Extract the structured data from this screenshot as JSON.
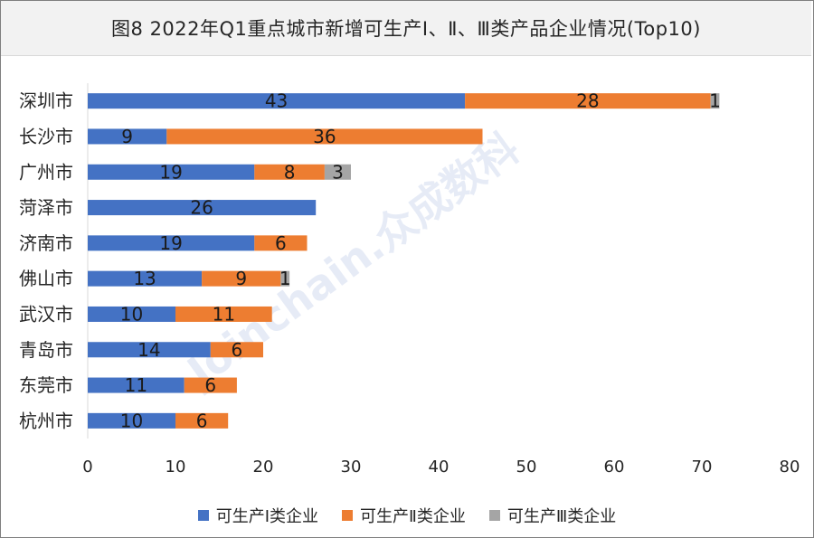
{
  "title": "图8  2022年Q1重点城市新增可生产Ⅰ、Ⅱ、Ⅲ类产品企业情况(Top10)",
  "watermark": "Joinchain.众成数科",
  "colors": {
    "class1": "#4472c4",
    "class2": "#ed7d31",
    "class3": "#a5a5a5"
  },
  "chart_data": {
    "type": "bar",
    "orientation": "horizontal",
    "stacked": true,
    "title": "图8  2022年Q1重点城市新增可生产Ⅰ、Ⅱ、Ⅲ类产品企业情况(Top10)",
    "categories": [
      "深圳市",
      "长沙市",
      "广州市",
      "菏泽市",
      "济南市",
      "佛山市",
      "武汉市",
      "青岛市",
      "东莞市",
      "杭州市"
    ],
    "series": [
      {
        "name": "可生产Ⅰ类企业",
        "values": [
          43,
          9,
          19,
          26,
          19,
          13,
          10,
          14,
          11,
          10
        ]
      },
      {
        "name": "可生产Ⅱ类企业",
        "values": [
          28,
          36,
          8,
          0,
          6,
          9,
          11,
          6,
          6,
          6
        ]
      },
      {
        "name": "可生产Ⅲ类企业",
        "values": [
          1,
          0,
          3,
          0,
          0,
          1,
          0,
          0,
          0,
          0
        ]
      }
    ],
    "xlim": [
      0,
      80
    ],
    "xticks": [
      0,
      10,
      20,
      30,
      40,
      50,
      60,
      70,
      80
    ],
    "grid": false,
    "legend_position": "bottom"
  }
}
